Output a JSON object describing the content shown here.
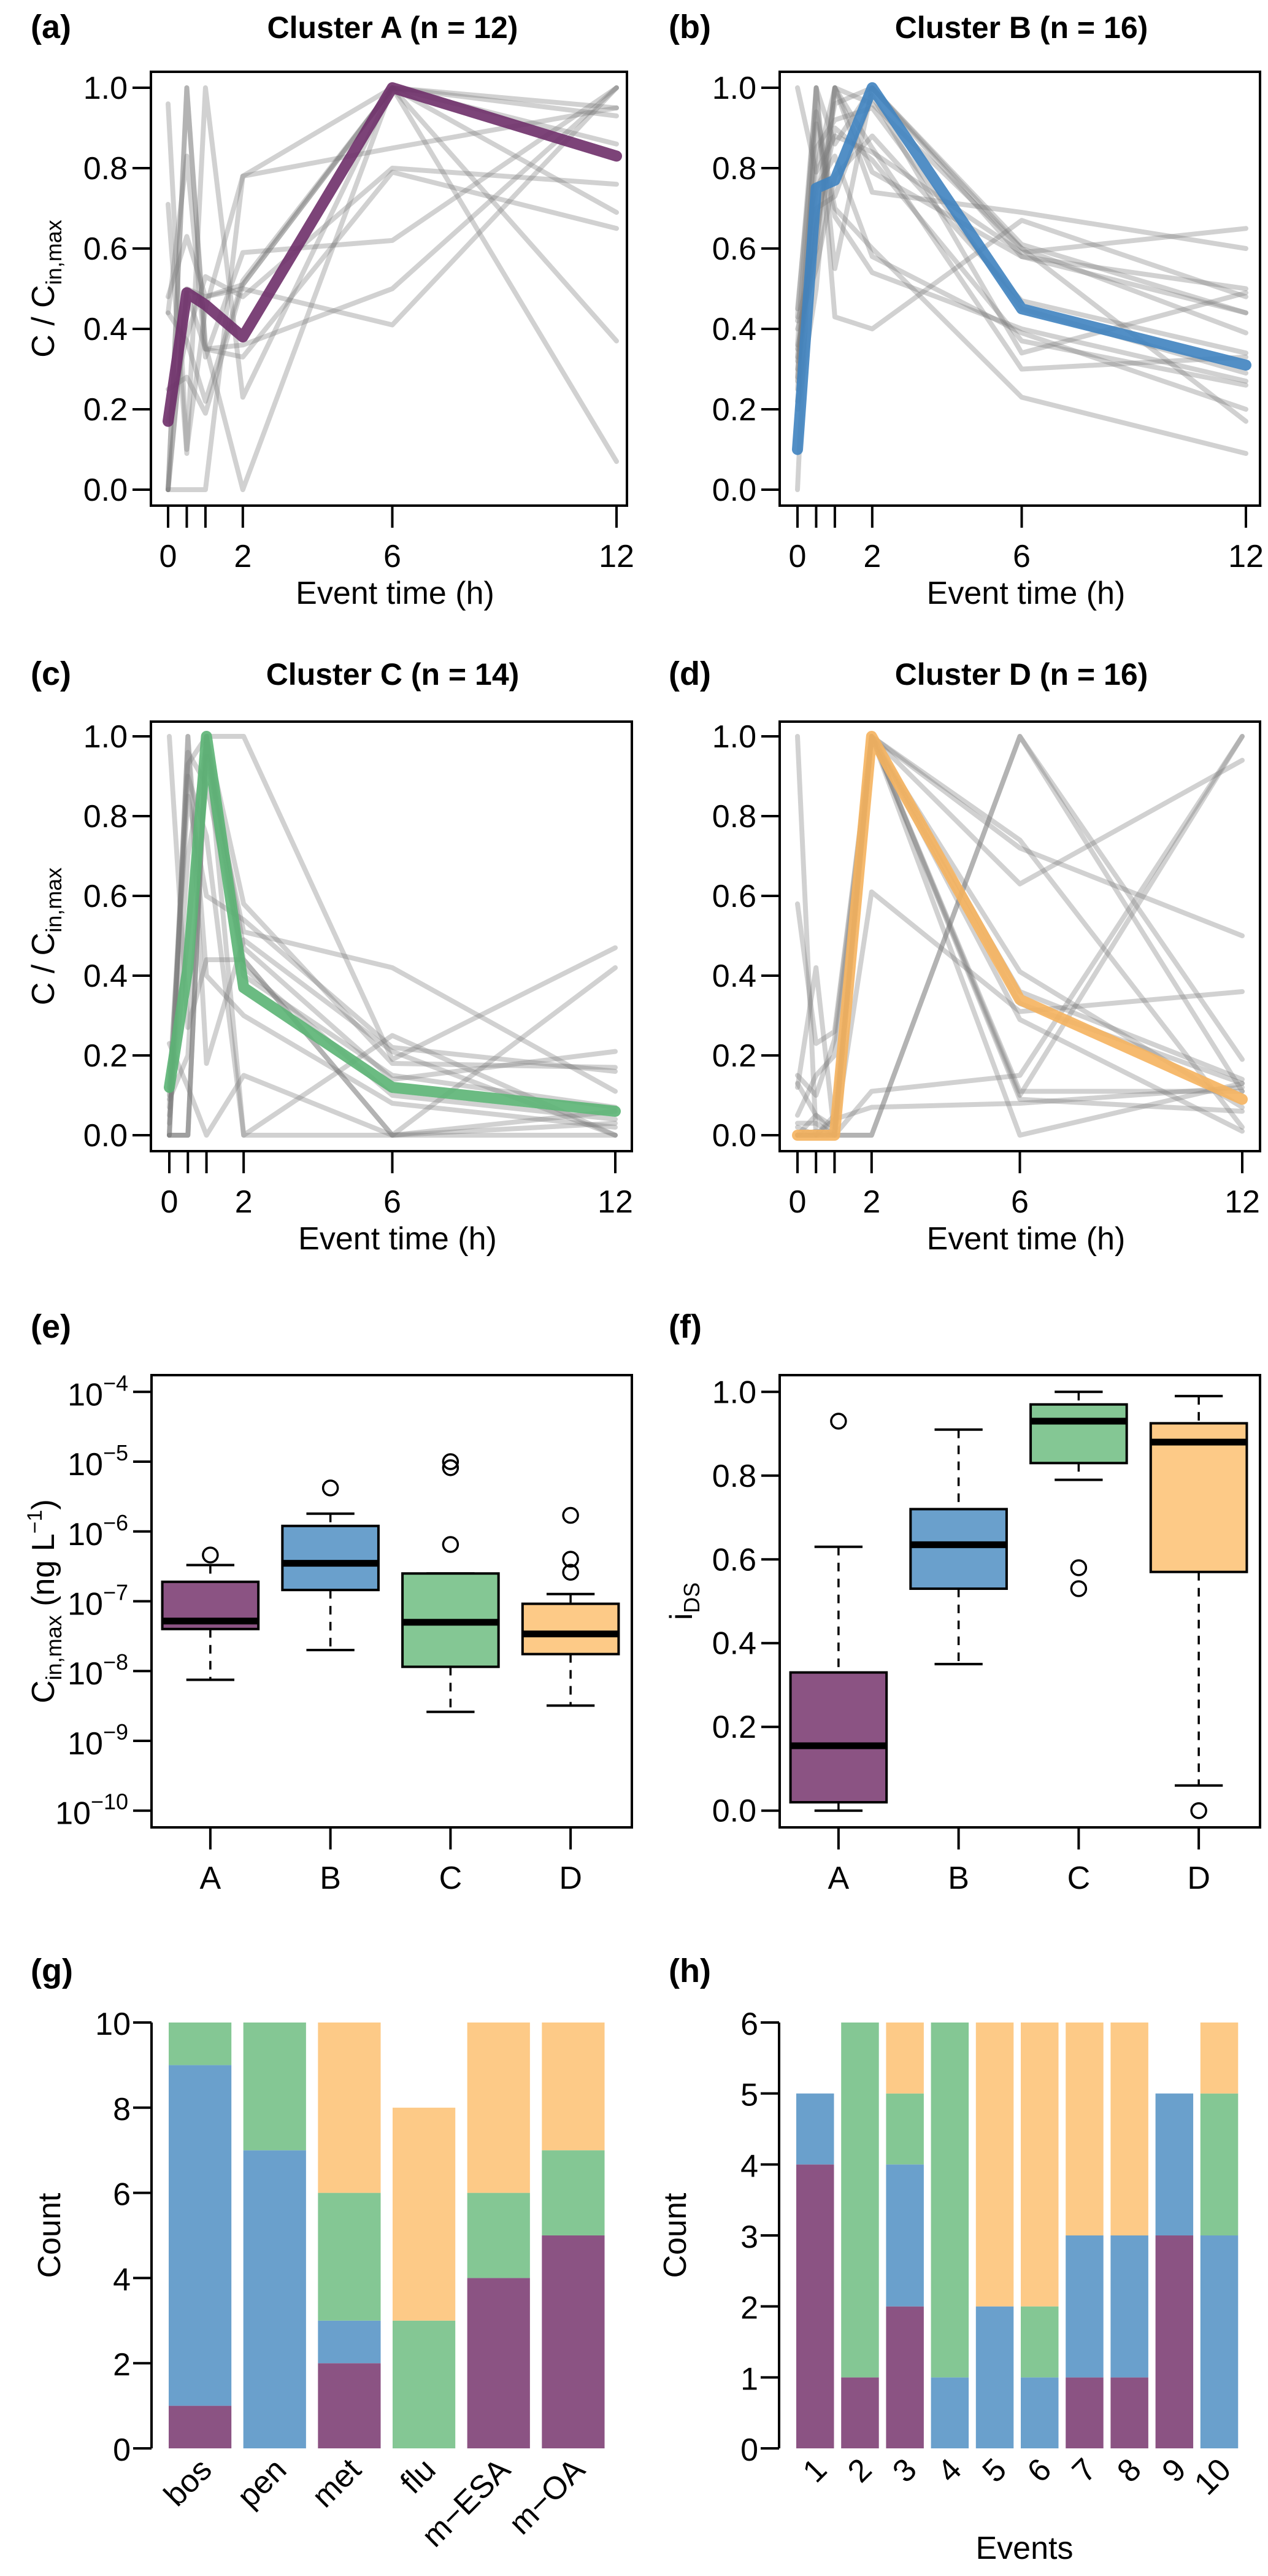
{
  "colors": {
    "A": "#8B5383",
    "B": "#6AA0CC",
    "C": "#84C794",
    "D": "#FDCA87",
    "A_line": "#6E2F69",
    "B_line": "#3F83C0",
    "C_line": "#5BB474",
    "D_line": "#F5B25E",
    "profile": "#7a7a7a"
  },
  "chart_data": [
    {
      "id": "a",
      "type": "line",
      "panel_tag": "(a)",
      "title": "Cluster A  (n = 12)",
      "xlabel": "Event time (h)",
      "ylabel": "C / C_in,max",
      "ylabel_main": "C / C",
      "ylabel_sub": "in,max",
      "ylim": [
        0,
        1
      ],
      "xlim": [
        0,
        12
      ],
      "yticks": [
        0.0,
        0.2,
        0.4,
        0.6,
        0.8,
        1.0
      ],
      "ytick_labels": [
        "0.0",
        "0.2",
        "0.4",
        "0.6",
        "0.8",
        "1.0"
      ],
      "xticks": [
        0,
        0.5,
        1,
        2,
        6,
        12
      ],
      "xtick_labels": [
        "0",
        "",
        "",
        "2",
        "6",
        "12"
      ],
      "x": [
        0,
        0.5,
        1,
        2,
        6,
        12
      ],
      "cluster": "A",
      "centroid": [
        0.17,
        0.49,
        0.46,
        0.38,
        1.0,
        0.83
      ],
      "profiles": [
        [
          0.96,
          0.1,
          0.45,
          0.78,
          0.85,
          0.95
        ],
        [
          0.0,
          1.0,
          0.36,
          0.0,
          1.0,
          0.37
        ],
        [
          0.71,
          0.09,
          1.0,
          0.23,
          1.0,
          0.07
        ],
        [
          0.44,
          0.83,
          0.33,
          0.59,
          0.62,
          1.0
        ],
        [
          0.48,
          0.63,
          0.48,
          0.5,
          0.41,
          1.0
        ],
        [
          0.0,
          0.0,
          0.0,
          0.78,
          1.0,
          0.93
        ],
        [
          0.25,
          0.28,
          0.19,
          0.51,
          1.0,
          0.86
        ],
        [
          0.0,
          0.49,
          0.35,
          0.33,
          0.79,
          0.65
        ],
        [
          0.17,
          0.38,
          0.53,
          0.48,
          0.8,
          0.76
        ],
        [
          0.0,
          1.0,
          0.35,
          0.36,
          0.5,
          1.0
        ],
        [
          0.44,
          0.37,
          0.22,
          0.52,
          1.0,
          0.69
        ],
        [
          0.0,
          0.5,
          0.48,
          0.51,
          1.0,
          0.95
        ]
      ]
    },
    {
      "id": "b",
      "type": "line",
      "panel_tag": "(b)",
      "title": "Cluster B  (n = 16)",
      "xlabel": "Event time (h)",
      "ylabel": "",
      "ylim": [
        0,
        1
      ],
      "xlim": [
        0,
        12
      ],
      "yticks": [
        0.0,
        0.2,
        0.4,
        0.6,
        0.8,
        1.0
      ],
      "ytick_labels": [
        "0.0",
        "0.2",
        "0.4",
        "0.6",
        "0.8",
        "1.0"
      ],
      "xticks": [
        0,
        0.5,
        1,
        2,
        6,
        12
      ],
      "xtick_labels": [
        "0",
        "",
        "",
        "2",
        "6",
        "12"
      ],
      "x": [
        0,
        0.5,
        1,
        2,
        6,
        12
      ],
      "cluster": "B",
      "centroid": [
        0.1,
        0.75,
        0.77,
        1.0,
        0.45,
        0.31
      ],
      "profiles": [
        [
          1.0,
          0.79,
          0.88,
          0.84,
          0.59,
          0.65
        ],
        [
          0.0,
          1.0,
          0.55,
          1.0,
          0.6,
          0.17
        ],
        [
          0.43,
          1.0,
          0.43,
          0.4,
          0.67,
          0.48
        ],
        [
          0.33,
          0.8,
          1.0,
          0.74,
          0.69,
          0.6
        ],
        [
          0.28,
          0.91,
          0.68,
          0.54,
          0.4,
          0.27
        ],
        [
          0.42,
          0.6,
          1.0,
          0.79,
          0.58,
          0.5
        ],
        [
          0.25,
          0.75,
          0.83,
          0.58,
          0.39,
          0.2
        ],
        [
          0.36,
          1.0,
          0.86,
          1.0,
          0.61,
          0.44
        ],
        [
          0.2,
          0.5,
          1.0,
          0.85,
          0.3,
          0.33
        ],
        [
          0.3,
          0.7,
          0.73,
          0.98,
          0.34,
          0.49
        ],
        [
          0.45,
          0.94,
          0.7,
          0.6,
          0.23,
          0.09
        ],
        [
          0.35,
          0.62,
          1.0,
          0.96,
          0.6,
          0.39
        ],
        [
          0.27,
          0.85,
          0.92,
          0.95,
          0.45,
          0.29
        ],
        [
          0.4,
          0.55,
          0.78,
          0.88,
          0.47,
          0.34
        ],
        [
          0.32,
          0.72,
          0.96,
          1.0,
          0.58,
          0.44
        ],
        [
          0.22,
          0.65,
          0.9,
          0.82,
          0.37,
          0.26
        ]
      ]
    },
    {
      "id": "c",
      "type": "line",
      "panel_tag": "(c)",
      "title": "Cluster C  (n = 14)",
      "xlabel": "Event time (h)",
      "ylabel": "C / C_in,max",
      "ylabel_main": "C / C",
      "ylabel_sub": "in,max",
      "ylim": [
        0,
        1
      ],
      "xlim": [
        0,
        12
      ],
      "yticks": [
        0.0,
        0.2,
        0.4,
        0.6,
        0.8,
        1.0
      ],
      "ytick_labels": [
        "0.0",
        "0.2",
        "0.4",
        "0.6",
        "0.8",
        "1.0"
      ],
      "xticks": [
        0,
        0.5,
        1,
        2,
        6,
        12
      ],
      "xtick_labels": [
        "0",
        "",
        "",
        "2",
        "6",
        "12"
      ],
      "x": [
        0,
        0.5,
        1,
        2,
        6,
        12
      ],
      "cluster": "C",
      "centroid": [
        0.12,
        0.42,
        1.0,
        0.37,
        0.12,
        0.06
      ],
      "profiles": [
        [
          1.0,
          0.27,
          0.44,
          0.44,
          0.0,
          0.0
        ],
        [
          0.0,
          1.0,
          0.18,
          0.49,
          0.21,
          0.0
        ],
        [
          0.0,
          0.0,
          1.0,
          0.0,
          0.0,
          0.03
        ],
        [
          0.1,
          0.93,
          1.0,
          1.0,
          0.19,
          0.47
        ],
        [
          0.23,
          0.12,
          0.0,
          0.15,
          0.0,
          0.42
        ],
        [
          0.0,
          0.0,
          1.0,
          0.58,
          0.18,
          0.17
        ],
        [
          0.09,
          0.2,
          0.95,
          0.51,
          0.42,
          0.11
        ],
        [
          0.0,
          1.0,
          0.4,
          0.3,
          0.08,
          0.02
        ],
        [
          0.07,
          0.9,
          0.75,
          0.0,
          0.25,
          0.0
        ],
        [
          0.0,
          0.0,
          1.0,
          0.47,
          0.14,
          0.21
        ],
        [
          0.12,
          0.85,
          0.6,
          0.54,
          0.22,
          0.16
        ],
        [
          0.0,
          0.96,
          0.88,
          0.44,
          0.0,
          0.06
        ],
        [
          0.05,
          0.5,
          1.0,
          0.42,
          0.1,
          0.04
        ],
        [
          0.03,
          0.7,
          0.98,
          0.4,
          0.15,
          0.07
        ]
      ]
    },
    {
      "id": "d",
      "type": "line",
      "panel_tag": "(d)",
      "title": "Cluster D  (n = 16)",
      "xlabel": "Event time (h)",
      "ylabel": "",
      "ylim": [
        0,
        1
      ],
      "xlim": [
        0,
        12
      ],
      "yticks": [
        0.0,
        0.2,
        0.4,
        0.6,
        0.8,
        1.0
      ],
      "ytick_labels": [
        "0.0",
        "0.2",
        "0.4",
        "0.6",
        "0.8",
        "1.0"
      ],
      "xticks": [
        0,
        0.5,
        1,
        2,
        6,
        12
      ],
      "xtick_labels": [
        "0",
        "",
        "",
        "2",
        "6",
        "12"
      ],
      "x": [
        0,
        0.5,
        1,
        2,
        6,
        12
      ],
      "cluster": "D",
      "centroid": [
        0.0,
        0.0,
        0.0,
        1.0,
        0.34,
        0.09
      ],
      "profiles": [
        [
          1.0,
          0.0,
          0.0,
          0.0,
          1.0,
          0.19
        ],
        [
          0.58,
          0.23,
          0.26,
          1.0,
          0.72,
          0.5
        ],
        [
          0.12,
          0.42,
          0.0,
          0.61,
          0.31,
          0.36
        ],
        [
          0.15,
          0.1,
          0.24,
          1.0,
          0.0,
          0.13
        ],
        [
          0.05,
          0.15,
          0.2,
          1.0,
          0.63,
          0.94
        ],
        [
          0.03,
          0.03,
          0.0,
          0.11,
          0.15,
          1.0
        ],
        [
          0.0,
          0.05,
          0.0,
          1.0,
          0.09,
          0.06
        ],
        [
          0.0,
          0.0,
          0.04,
          0.07,
          0.08,
          0.12
        ],
        [
          0.13,
          0.05,
          0.02,
          1.0,
          0.74,
          0.02
        ],
        [
          0.0,
          0.01,
          0.0,
          1.0,
          0.1,
          1.0
        ],
        [
          0.02,
          0.0,
          0.0,
          1.0,
          0.41,
          0.07
        ],
        [
          0.0,
          0.0,
          0.01,
          1.0,
          0.29,
          0.01
        ],
        [
          0.0,
          0.0,
          0.0,
          0.0,
          1.0,
          0.11
        ],
        [
          0.0,
          0.0,
          0.0,
          1.0,
          0.33,
          0.13
        ],
        [
          0.0,
          0.0,
          0.05,
          1.0,
          0.11,
          0.11
        ],
        [
          0.0,
          0.0,
          0.0,
          1.0,
          0.36,
          0.14
        ]
      ]
    },
    {
      "id": "e",
      "type": "box",
      "panel_tag": "(e)",
      "title": "",
      "xlabel": "",
      "ylabel": "C_in,max (ng L^-1)",
      "ylabel_main": "C",
      "ylabel_sub": "in,max",
      "ylabel_unit": "(ng L",
      "ylabel_sup": "−1",
      "ylabel_close": ")",
      "yscale": "log10",
      "ylim_log10": [
        -10,
        -4
      ],
      "yticks_log10": [
        -10,
        -9,
        -8,
        -7,
        -6,
        -5,
        -4
      ],
      "ytick_base": "10",
      "ytick_exponents": [
        "−10",
        "−9",
        "−8",
        "−7",
        "−6",
        "−5",
        "−4"
      ],
      "categories": [
        "A",
        "B",
        "C",
        "D"
      ],
      "boxes": [
        {
          "cluster": "A",
          "whisker_low": 7.5e-09,
          "q1": 4e-08,
          "median": 5.2e-08,
          "q3": 1.9e-07,
          "whisker_high": 3.3e-07,
          "outliers": [
            4.6e-07
          ]
        },
        {
          "cluster": "B",
          "whisker_low": 2e-08,
          "q1": 1.45e-07,
          "median": 3.5e-07,
          "q3": 1.2e-06,
          "whisker_high": 1.8e-06,
          "outliers": [
            4.2e-06
          ]
        },
        {
          "cluster": "C",
          "whisker_low": 2.6e-09,
          "q1": 1.15e-08,
          "median": 5e-08,
          "q3": 2.5e-07,
          "whisker_high": 2.5e-07,
          "outliers": [
            6.5e-07,
            8.2e-06,
            1e-05
          ]
        },
        {
          "cluster": "D",
          "whisker_low": 3.2e-09,
          "q1": 1.75e-08,
          "median": 3.4e-08,
          "q3": 9.2e-08,
          "whisker_high": 1.27e-07,
          "outliers": [
            2.6e-07,
            4e-07,
            1.7e-06
          ]
        }
      ]
    },
    {
      "id": "f",
      "type": "box",
      "panel_tag": "(f)",
      "title": "",
      "xlabel": "",
      "ylabel": "i_DS",
      "ylabel_main": "i",
      "ylabel_sub": "DS",
      "ylim": [
        0,
        1
      ],
      "yticks": [
        0.0,
        0.2,
        0.4,
        0.6,
        0.8,
        1.0
      ],
      "ytick_labels": [
        "0.0",
        "0.2",
        "0.4",
        "0.6",
        "0.8",
        "1.0"
      ],
      "categories": [
        "A",
        "B",
        "C",
        "D"
      ],
      "boxes": [
        {
          "cluster": "A",
          "whisker_low": 0.0,
          "q1": 0.02,
          "median": 0.155,
          "q3": 0.33,
          "whisker_high": 0.63,
          "outliers": [
            0.93
          ]
        },
        {
          "cluster": "B",
          "whisker_low": 0.35,
          "q1": 0.53,
          "median": 0.635,
          "q3": 0.72,
          "whisker_high": 0.91,
          "outliers": []
        },
        {
          "cluster": "C",
          "whisker_low": 0.79,
          "q1": 0.83,
          "median": 0.93,
          "q3": 0.97,
          "whisker_high": 1.0,
          "outliers": [
            0.53,
            0.58
          ]
        },
        {
          "cluster": "D",
          "whisker_low": 0.06,
          "q1": 0.57,
          "median": 0.88,
          "q3": 0.925,
          "whisker_high": 0.99,
          "outliers": [
            0.0
          ]
        }
      ]
    },
    {
      "id": "g",
      "type": "bar",
      "stacked": true,
      "panel_tag": "(g)",
      "title": "",
      "xlabel": "",
      "ylabel": "Count",
      "ylim": [
        0,
        10
      ],
      "yticks": [
        0,
        2,
        4,
        6,
        8,
        10
      ],
      "ytick_labels": [
        "0",
        "2",
        "4",
        "6",
        "8",
        "10"
      ],
      "categories": [
        "bos",
        "pen",
        "met",
        "flu",
        "m−ESA",
        "m−OA"
      ],
      "series": [
        {
          "name": "A",
          "values": [
            1,
            0,
            2,
            0,
            4,
            5
          ]
        },
        {
          "name": "B",
          "values": [
            8,
            7,
            1,
            0,
            0,
            0
          ]
        },
        {
          "name": "C",
          "values": [
            1,
            3,
            3,
            3,
            2,
            2
          ]
        },
        {
          "name": "D",
          "values": [
            0,
            0,
            4,
            5,
            4,
            3
          ]
        }
      ]
    },
    {
      "id": "h",
      "type": "bar",
      "stacked": true,
      "panel_tag": "(h)",
      "title": "",
      "xlabel": "Events",
      "ylabel": "Count",
      "ylim": [
        0,
        6
      ],
      "yticks": [
        0,
        1,
        2,
        3,
        4,
        5,
        6
      ],
      "ytick_labels": [
        "0",
        "1",
        "2",
        "3",
        "4",
        "5",
        "6"
      ],
      "categories": [
        "1",
        "2",
        "3",
        "4",
        "5",
        "6",
        "7",
        "8",
        "9",
        "10"
      ],
      "series": [
        {
          "name": "A",
          "values": [
            4,
            1,
            2,
            0,
            0,
            0,
            1,
            1,
            3,
            0
          ]
        },
        {
          "name": "B",
          "values": [
            1,
            0,
            2,
            1,
            2,
            1,
            2,
            2,
            2,
            3
          ]
        },
        {
          "name": "C",
          "values": [
            0,
            5,
            1,
            5,
            0,
            1,
            0,
            0,
            0,
            2
          ]
        },
        {
          "name": "D",
          "values": [
            0,
            0,
            1,
            0,
            4,
            4,
            3,
            3,
            0,
            1
          ]
        }
      ]
    }
  ]
}
